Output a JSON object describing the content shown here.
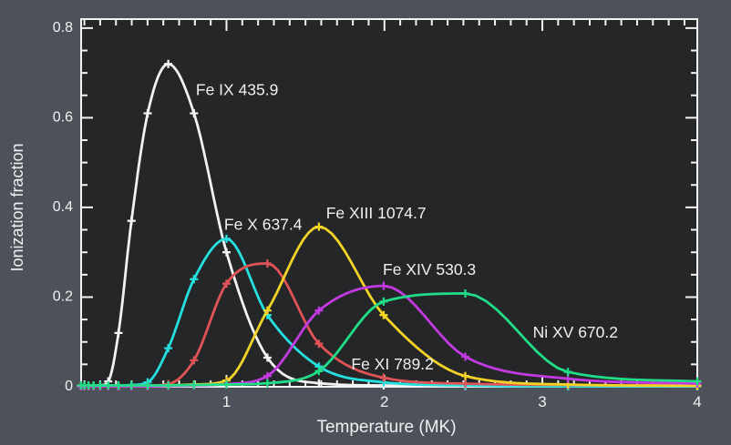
{
  "figure": {
    "bg_color": "#4d525a",
    "plot_bg_color": "#242628",
    "axis_color": "#f2f2f2",
    "text_color": "#f0f0f0"
  },
  "chart_data": {
    "type": "line",
    "title": "",
    "xlabel": "Temperature (MK)",
    "ylabel": "Ionization fraction",
    "xlim": [
      0.0794,
      3.981
    ],
    "ylim": [
      0,
      0.82
    ],
    "grid": false,
    "legend_position": "inline-colored-labels",
    "x_major_ticks": [
      1,
      2,
      3,
      4
    ],
    "x_tick_labels": [
      "1",
      "2",
      "3",
      "4"
    ],
    "x_minor_step": 0.1,
    "y_major_ticks": [
      0,
      0.2,
      0.4,
      0.6,
      0.8
    ],
    "y_tick_labels": [
      "0",
      "0.2",
      "0.4",
      "0.6",
      "0.8"
    ],
    "y_minor_step": 0.05,
    "x_note": "temperatures in MK sampled every 0.1 dex in log T from log T = 4.9 to 6.6; markers are plus signs at each sample",
    "x": [
      0.079,
      0.1,
      0.126,
      0.158,
      0.2,
      0.251,
      0.316,
      0.398,
      0.501,
      0.631,
      0.794,
      1.0,
      1.259,
      1.585,
      1.995,
      2.512,
      3.162,
      3.981
    ],
    "series": [
      {
        "name": "Fe IX",
        "label": "Fe IX 435.9",
        "color": "#f2f2f2",
        "peak": {
          "temp_MK": 0.63,
          "fraction": 0.72
        },
        "label_anchor": [
          0.806,
          0.651
        ],
        "values": [
          0.002,
          0.002,
          0.002,
          0.002,
          0.003,
          0.012,
          0.12,
          0.37,
          0.61,
          0.72,
          0.61,
          0.3,
          0.065,
          0.008,
          0.003,
          0.002,
          0.001,
          0.001
        ]
      },
      {
        "name": "Fe X",
        "label": "Fe X 637.4",
        "color": "#26dfdf",
        "peak": {
          "temp_MK": 1.0,
          "fraction": 0.33
        },
        "label_anchor": [
          0.985,
          0.35
        ],
        "values": [
          0.001,
          0.001,
          0.001,
          0.001,
          0.001,
          0.001,
          0.002,
          0.004,
          0.01,
          0.086,
          0.24,
          0.33,
          0.16,
          0.045,
          0.01,
          0.003,
          0.001,
          0.001
        ]
      },
      {
        "name": "Fe XI",
        "label": "Fe XI 789.2",
        "color": "#e05356",
        "peak": {
          "temp_MK": 1.26,
          "fraction": 0.275
        },
        "label_anchor": [
          1.79,
          0.039
        ],
        "values": [
          0.001,
          0.001,
          0.001,
          0.001,
          0.001,
          0.001,
          0.001,
          0.002,
          0.003,
          0.006,
          0.059,
          0.23,
          0.275,
          0.096,
          0.02,
          0.007,
          0.004,
          0.003
        ]
      },
      {
        "name": "Fe XIII",
        "label": "Fe XIII 1074.7",
        "color": "#f2d326",
        "peak": {
          "temp_MK": 1.58,
          "fraction": 0.357
        },
        "label_anchor": [
          1.63,
          0.375
        ],
        "values": [
          0.001,
          0.001,
          0.001,
          0.001,
          0.001,
          0.001,
          0.001,
          0.001,
          0.002,
          0.003,
          0.005,
          0.014,
          0.17,
          0.357,
          0.16,
          0.024,
          0.005,
          0.002
        ]
      },
      {
        "name": "Fe XIV",
        "label": "Fe XIV 530.3",
        "color": "#c43ae2",
        "peak": {
          "temp_MK": 2.0,
          "fraction": 0.225
        },
        "label_anchor": [
          1.99,
          0.25
        ],
        "values": [
          0.001,
          0.001,
          0.001,
          0.001,
          0.001,
          0.001,
          0.001,
          0.001,
          0.001,
          0.002,
          0.003,
          0.006,
          0.024,
          0.17,
          0.225,
          0.067,
          0.018,
          0.007
        ]
      },
      {
        "name": "Ni XV",
        "label": "Ni XV 670.2",
        "color": "#22dd88",
        "peak": {
          "temp_MK": 2.35,
          "fraction": 0.215
        },
        "label_anchor": [
          2.94,
          0.11
        ],
        "values": [
          0.003,
          0.003,
          0.003,
          0.003,
          0.003,
          0.003,
          0.003,
          0.003,
          0.003,
          0.003,
          0.004,
          0.005,
          0.008,
          0.035,
          0.19,
          0.208,
          0.033,
          0.012
        ]
      }
    ]
  }
}
